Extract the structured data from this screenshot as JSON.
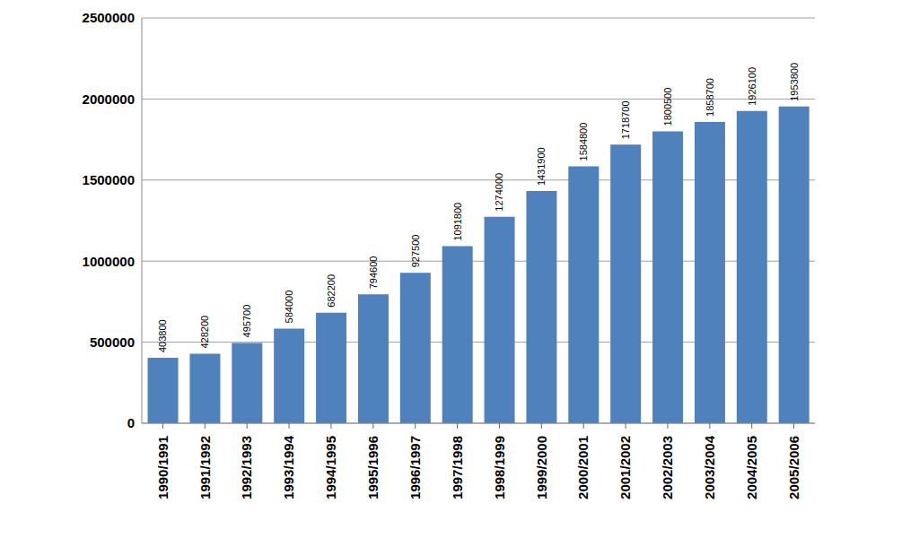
{
  "chart_data": {
    "type": "bar",
    "categories": [
      "1990/1991",
      "1991/1992",
      "1992/1993",
      "1993/1994",
      "1994/1995",
      "1995/1996",
      "1996/1997",
      "1997/1998",
      "1998/1999",
      "1999/2000",
      "2000/2001",
      "2001/2002",
      "2002/2003",
      "2003/2004",
      "2004/2005",
      "2005/2006"
    ],
    "values": [
      403800,
      428200,
      495700,
      584000,
      682200,
      794600,
      927500,
      1091800,
      1274000,
      1431900,
      1584800,
      1718700,
      1800500,
      1858700,
      1926100,
      1953800
    ],
    "color": "#4f81bd",
    "ylim": [
      0,
      2500000
    ],
    "yticks": [
      0,
      500000,
      1000000,
      1500000,
      2000000,
      2500000
    ],
    "grid": true,
    "data_labels": true
  }
}
